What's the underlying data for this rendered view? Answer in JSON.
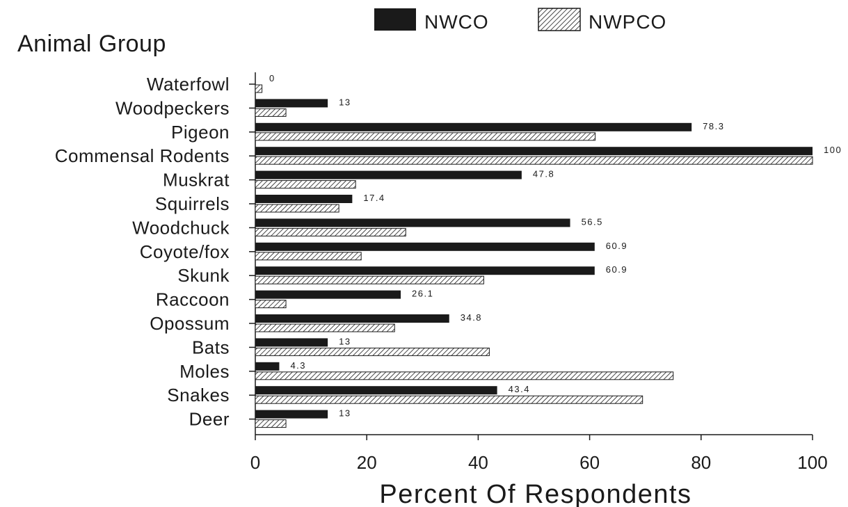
{
  "chart_data": {
    "type": "bar",
    "orientation": "horizontal",
    "title": "Animal Group",
    "xlabel": "Percent Of Respondents",
    "ylabel": "",
    "xlim": [
      0,
      100
    ],
    "xticks": [
      0,
      20,
      40,
      60,
      80,
      100
    ],
    "categories": [
      "Waterfowl",
      "Woodpeckers",
      "Pigeon",
      "Commensal Rodents",
      "Muskrat",
      "Squirrels",
      "Woodchuck",
      "Coyote/fox",
      "Skunk",
      "Raccoon",
      "Opossum",
      "Bats",
      "Moles",
      "Snakes",
      "Deer"
    ],
    "series": [
      {
        "name": "NWCO",
        "color": "#1a1a1a",
        "pattern": "solid",
        "values": [
          0,
          13,
          78.3,
          100,
          47.8,
          17.4,
          56.5,
          60.9,
          60.9,
          26.1,
          34.8,
          13,
          4.3,
          43.4,
          13
        ],
        "labels": [
          "0",
          "13",
          "78.3",
          "100",
          "47.8",
          "17.4",
          "56.5",
          "60.9",
          "60.9",
          "26.1",
          "34.8",
          "13",
          "4.3",
          "43.4",
          "13"
        ]
      },
      {
        "name": "NWPCO",
        "color": "#ffffff",
        "pattern": "hatched",
        "values": [
          1.2,
          5.5,
          61,
          100,
          18,
          15,
          27,
          19,
          41,
          5.5,
          25,
          42,
          75,
          69.5,
          5.5
        ]
      }
    ],
    "legend_position": "top-right",
    "grid": false
  }
}
